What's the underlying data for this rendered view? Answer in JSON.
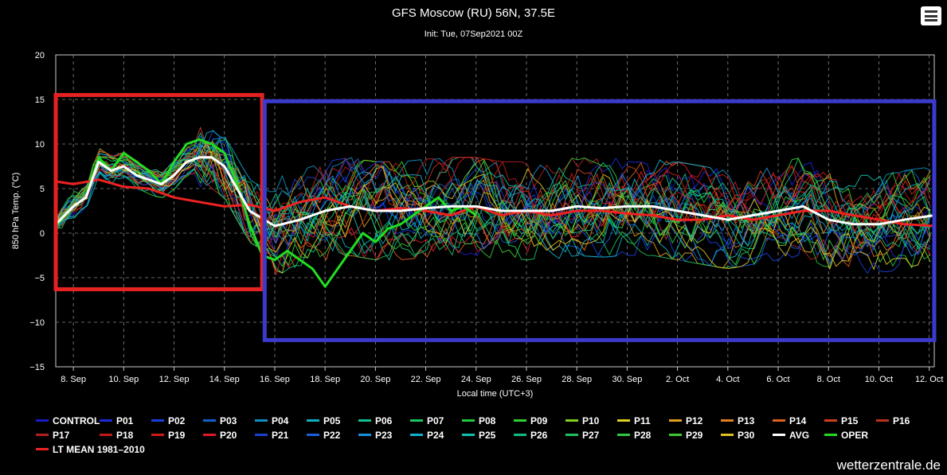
{
  "header": {
    "title": "GFS Moscow (RU) 56N, 37.5E",
    "subtitle": "Init: Tue, 07Sep2021 00Z",
    "menu_icon": "hamburger-menu-icon"
  },
  "credit": "wetterzentrale.de",
  "chart_data": {
    "type": "line",
    "title": "GFS Moscow (RU) 56N, 37.5E",
    "subtitle": "Init: Tue, 07Sep2021 00Z",
    "ylabel": "850 hPa Temp. (°C)",
    "xlabel": "Local time (UTC+3)",
    "ylim": [
      -15,
      20
    ],
    "yticks": [
      "20",
      "15",
      "10",
      "5",
      "0",
      "−5",
      "−10",
      "−15"
    ],
    "xticks": [
      "8. Sep",
      "10. Sep",
      "12. Sep",
      "14. Sep",
      "16. Sep",
      "18. Sep",
      "20. Sep",
      "22. Sep",
      "24. Sep",
      "26. Sep",
      "28. Sep",
      "30. Sep",
      "2. Oct",
      "4. Oct",
      "6. Oct",
      "8. Oct",
      "10. Oct",
      "12. Oct"
    ],
    "x_start_day": 7.3,
    "x_end_day": 42.2,
    "grid": true,
    "legend_position": "bottom",
    "avg_series": {
      "name": "AVG",
      "color": "#ffffff",
      "x_days": [
        7.3,
        8.0,
        8.5,
        9.0,
        9.5,
        10.0,
        10.5,
        11.0,
        11.5,
        12.0,
        12.5,
        13.0,
        13.5,
        14.0,
        14.5,
        15.0,
        16.0,
        17.0,
        18.0,
        19.0,
        20.0,
        21.0,
        22.0,
        23.0,
        24.0,
        25.0,
        26.0,
        27.0,
        28.0,
        29.0,
        30.0,
        31.0,
        32.0,
        33.0,
        34.0,
        35.0,
        36.0,
        37.0,
        38.0,
        39.0,
        40.0,
        41.0,
        42.2
      ],
      "values": [
        1.0,
        3.0,
        4.0,
        8.0,
        7.0,
        7.5,
        6.5,
        6.0,
        5.5,
        6.5,
        8.0,
        8.5,
        8.5,
        7.5,
        5.0,
        2.5,
        0.8,
        1.5,
        2.5,
        3.0,
        2.5,
        2.5,
        2.8,
        3.0,
        3.0,
        2.5,
        2.5,
        2.5,
        3.0,
        2.8,
        3.0,
        3.0,
        2.5,
        2.0,
        1.5,
        2.0,
        2.5,
        3.0,
        1.5,
        1.0,
        1.0,
        1.5,
        2.0
      ]
    },
    "lt_mean_series": {
      "name": "LT MEAN 1981–2010",
      "color": "#ee2222",
      "x_days": [
        7.3,
        8.0,
        9.0,
        10.0,
        11.0,
        12.0,
        13.0,
        14.0,
        15.0,
        16.0,
        17.0,
        18.0,
        19.0,
        20.0,
        21.0,
        22.0,
        23.0,
        24.0,
        25.0,
        26.0,
        27.0,
        28.0,
        29.0,
        30.0,
        31.0,
        32.0,
        33.0,
        34.0,
        35.0,
        36.0,
        37.0,
        38.0,
        39.0,
        40.0,
        41.0,
        42.2
      ],
      "values": [
        5.8,
        5.5,
        6.0,
        5.2,
        5.0,
        4.0,
        3.5,
        3.0,
        3.2,
        2.5,
        3.5,
        4.0,
        3.0,
        2.5,
        2.8,
        2.5,
        2.0,
        3.0,
        2.0,
        2.5,
        2.0,
        2.5,
        2.5,
        2.2,
        2.0,
        1.5,
        1.5,
        2.0,
        1.5,
        2.0,
        2.5,
        2.5,
        2.0,
        1.5,
        1.0,
        0.8
      ]
    },
    "oper_series": {
      "name": "OPER",
      "color": "#22dd22",
      "x_days": [
        7.3,
        8.0,
        8.5,
        9.0,
        9.5,
        10.0,
        10.5,
        11.0,
        11.5,
        12.0,
        12.5,
        13.0,
        13.5,
        14.0,
        14.5,
        15.0,
        15.5,
        16.0,
        16.5,
        17.0,
        17.5,
        18.0,
        18.5,
        19.0,
        19.5,
        20.0,
        20.5,
        21.0,
        21.5,
        22.0,
        22.5,
        23.0,
        23.5,
        24.0
      ],
      "values": [
        0.8,
        3.0,
        4.0,
        8.5,
        7.0,
        9.0,
        8.0,
        7.0,
        5.5,
        8.0,
        10.0,
        10.5,
        10.0,
        9.0,
        5.5,
        1.0,
        -2.5,
        -3.0,
        -2.0,
        -3.0,
        -4.0,
        -6.0,
        -4.0,
        -2.0,
        0.0,
        -1.0,
        0.5,
        1.0,
        2.0,
        3.0,
        4.0,
        2.5,
        3.0,
        2.0
      ]
    },
    "members": [
      "CONTROL",
      "P01",
      "P02",
      "P03",
      "P04",
      "P05",
      "P06",
      "P07",
      "P08",
      "P09",
      "P10",
      "P11",
      "P12",
      "P13",
      "P14",
      "P15",
      "P16",
      "P17",
      "P18",
      "P19",
      "P20",
      "P21",
      "P22",
      "P23",
      "P24",
      "P25",
      "P26",
      "P27",
      "P28",
      "P29",
      "P30"
    ],
    "member_colors": [
      "#1a1acc",
      "#1a2ad8",
      "#1a3fe0",
      "#1060d0",
      "#1090c0",
      "#10b0c0",
      "#10c090",
      "#18c860",
      "#20c840",
      "#30d030",
      "#80d020",
      "#e0d020",
      "#e0a020",
      "#e08020",
      "#e06020",
      "#d04020",
      "#c03020",
      "#b02020",
      "#c01a1a",
      "#d01a1a",
      "#e01a2a",
      "#1a40d0",
      "#1a60e0",
      "#1a90e0",
      "#10b0d0",
      "#10c0b0",
      "#10c080",
      "#20c060",
      "#30c840",
      "#40c830",
      "#e0c020"
    ],
    "annotations": [
      {
        "name": "short-range-box",
        "color": "#e52222",
        "x_days": [
          7.3,
          15.5
        ],
        "y": [
          -6.3,
          15.5
        ]
      },
      {
        "name": "long-range-box",
        "color": "#3a3acc",
        "x_days": [
          15.6,
          42.2
        ],
        "y": [
          -12.0,
          14.8
        ]
      }
    ]
  },
  "legend": {
    "rows": [
      [
        {
          "label": "CONTROL",
          "color": "#1a1acc"
        },
        {
          "label": "P01",
          "color": "#1a2ad8"
        },
        {
          "label": "P02",
          "color": "#1a3fe0"
        },
        {
          "label": "P03",
          "color": "#1060d0"
        },
        {
          "label": "P04",
          "color": "#1090c0"
        },
        {
          "label": "P05",
          "color": "#10b0c0"
        },
        {
          "label": "P06",
          "color": "#10c090"
        },
        {
          "label": "P07",
          "color": "#18c860"
        },
        {
          "label": "P08",
          "color": "#20c840"
        },
        {
          "label": "P09",
          "color": "#30d030"
        },
        {
          "label": "P10",
          "color": "#80d020"
        },
        {
          "label": "P11",
          "color": "#e0d020"
        },
        {
          "label": "P12",
          "color": "#e0a020"
        },
        {
          "label": "P13",
          "color": "#e08020"
        },
        {
          "label": "P14",
          "color": "#e06020"
        },
        {
          "label": "P15",
          "color": "#d04020"
        },
        {
          "label": "P16",
          "color": "#c03020"
        }
      ],
      [
        {
          "label": "P17",
          "color": "#b02020"
        },
        {
          "label": "P18",
          "color": "#c01a1a"
        },
        {
          "label": "P19",
          "color": "#d01a1a"
        },
        {
          "label": "P20",
          "color": "#e01a2a"
        },
        {
          "label": "P21",
          "color": "#1a40d0"
        },
        {
          "label": "P22",
          "color": "#1a60e0"
        },
        {
          "label": "P23",
          "color": "#1a90e0"
        },
        {
          "label": "P24",
          "color": "#10b0d0"
        },
        {
          "label": "P25",
          "color": "#10c0b0"
        },
        {
          "label": "P26",
          "color": "#10c080"
        },
        {
          "label": "P27",
          "color": "#20c060"
        },
        {
          "label": "P28",
          "color": "#30c840"
        },
        {
          "label": "P29",
          "color": "#40c830"
        },
        {
          "label": "P30",
          "color": "#e0c020"
        },
        {
          "label": "AVG",
          "color": "#ffffff"
        },
        {
          "label": "OPER",
          "color": "#22dd22"
        }
      ],
      [
        {
          "label": "LT MEAN 1981–2010",
          "color": "#ee2222"
        }
      ]
    ]
  }
}
